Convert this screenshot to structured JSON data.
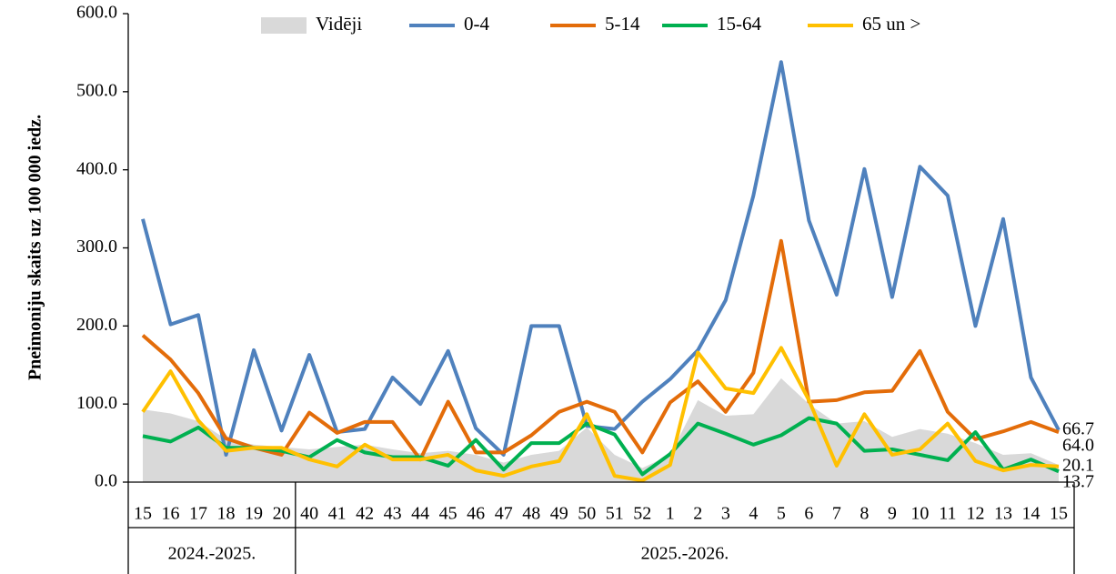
{
  "chart_data": {
    "type": "line",
    "y_label": "Pneimoniju skaits uz 100 000 iedz.",
    "categories": [
      "15",
      "16",
      "17",
      "18",
      "19",
      "20",
      "40",
      "41",
      "42",
      "43",
      "44",
      "45",
      "46",
      "47",
      "48",
      "49",
      "50",
      "51",
      "52",
      "1",
      "2",
      "3",
      "4",
      "5",
      "6",
      "7",
      "8",
      "9",
      "10",
      "11",
      "12",
      "13",
      "14",
      "15"
    ],
    "groups": [
      {
        "label": "2024.-2025.",
        "span": [
          0,
          5
        ]
      },
      {
        "label": "2025.-2026.",
        "span": [
          6,
          33
        ]
      }
    ],
    "ylim": [
      0,
      600
    ],
    "yticks": [
      {
        "value": 0,
        "label": "0.0"
      },
      {
        "value": 100,
        "label": "100.0"
      },
      {
        "value": 200,
        "label": "200.0"
      },
      {
        "value": 300,
        "label": "300.0"
      },
      {
        "value": 400,
        "label": "400.0"
      },
      {
        "value": 500,
        "label": "500.0"
      },
      {
        "value": 600,
        "label": "600.0"
      }
    ],
    "legend": "top",
    "series": [
      {
        "name": "Vidēji",
        "kind": "area",
        "color": "#d9d9d9",
        "values": [
          93,
          88,
          78,
          55,
          48,
          45,
          42,
          45,
          48,
          42,
          37,
          40,
          35,
          25,
          35,
          40,
          70,
          35,
          18,
          35,
          105,
          85,
          87,
          133,
          100,
          75,
          78,
          58,
          68,
          62,
          50,
          35,
          37,
          22
        ]
      },
      {
        "name": "0-4",
        "color": "#4f81bd",
        "values": [
          337,
          202,
          214,
          35,
          169,
          66,
          163,
          64,
          68,
          134,
          100,
          168,
          69,
          35,
          200,
          200,
          72,
          68,
          103,
          132,
          169,
          233,
          367,
          538,
          335,
          240,
          401,
          237,
          404,
          367,
          200,
          337,
          134,
          66.7
        ],
        "value_labels": [
          null,
          null,
          null,
          null,
          null,
          null,
          null,
          null,
          null,
          null,
          null,
          null,
          null,
          null,
          null,
          null,
          null,
          null,
          null,
          null,
          null,
          null,
          null,
          null,
          null,
          null,
          null,
          null,
          null,
          null,
          null,
          null,
          null,
          "66.7"
        ]
      },
      {
        "name": "5-14",
        "color": "#e36c09",
        "values": [
          188,
          157,
          114,
          56,
          44,
          35,
          89,
          63,
          77,
          77,
          29,
          103,
          38,
          38,
          60,
          90,
          103,
          90,
          38,
          102,
          129,
          90,
          140,
          309,
          103,
          105,
          115,
          117,
          168,
          90,
          55,
          65,
          77,
          64.0
        ],
        "value_labels": [
          null,
          null,
          null,
          null,
          null,
          null,
          null,
          null,
          null,
          null,
          null,
          null,
          null,
          null,
          null,
          null,
          null,
          null,
          null,
          null,
          null,
          null,
          null,
          null,
          null,
          null,
          null,
          null,
          null,
          null,
          null,
          null,
          null,
          "64.0"
        ]
      },
      {
        "name": "15-64",
        "color": "#00b050",
        "values": [
          59,
          52,
          70,
          44,
          44,
          40,
          32,
          54,
          38,
          32,
          32,
          21,
          54,
          16,
          50,
          50,
          75,
          61,
          10,
          36,
          75,
          62,
          48,
          60,
          82,
          75,
          40,
          42,
          35,
          28,
          64,
          16,
          29,
          13.7
        ],
        "value_labels": [
          null,
          null,
          null,
          null,
          null,
          null,
          null,
          null,
          null,
          null,
          null,
          null,
          null,
          null,
          null,
          null,
          null,
          null,
          null,
          null,
          null,
          null,
          null,
          null,
          null,
          null,
          null,
          null,
          null,
          null,
          null,
          null,
          null,
          "13.7"
        ]
      },
      {
        "name": "65 un >",
        "color": "#ffc000",
        "values": [
          90,
          142,
          79,
          40,
          44,
          44,
          29,
          20,
          48,
          29,
          29,
          35,
          15,
          8,
          20,
          27,
          87,
          8,
          2,
          22,
          166,
          120,
          114,
          172,
          105,
          21,
          87,
          35,
          42,
          75,
          27,
          15,
          22,
          20.1
        ],
        "value_labels": [
          null,
          null,
          null,
          null,
          null,
          null,
          null,
          null,
          null,
          null,
          null,
          null,
          null,
          null,
          null,
          null,
          null,
          null,
          null,
          null,
          null,
          null,
          null,
          null,
          null,
          null,
          null,
          null,
          null,
          null,
          null,
          null,
          null,
          "20.1"
        ]
      }
    ]
  }
}
